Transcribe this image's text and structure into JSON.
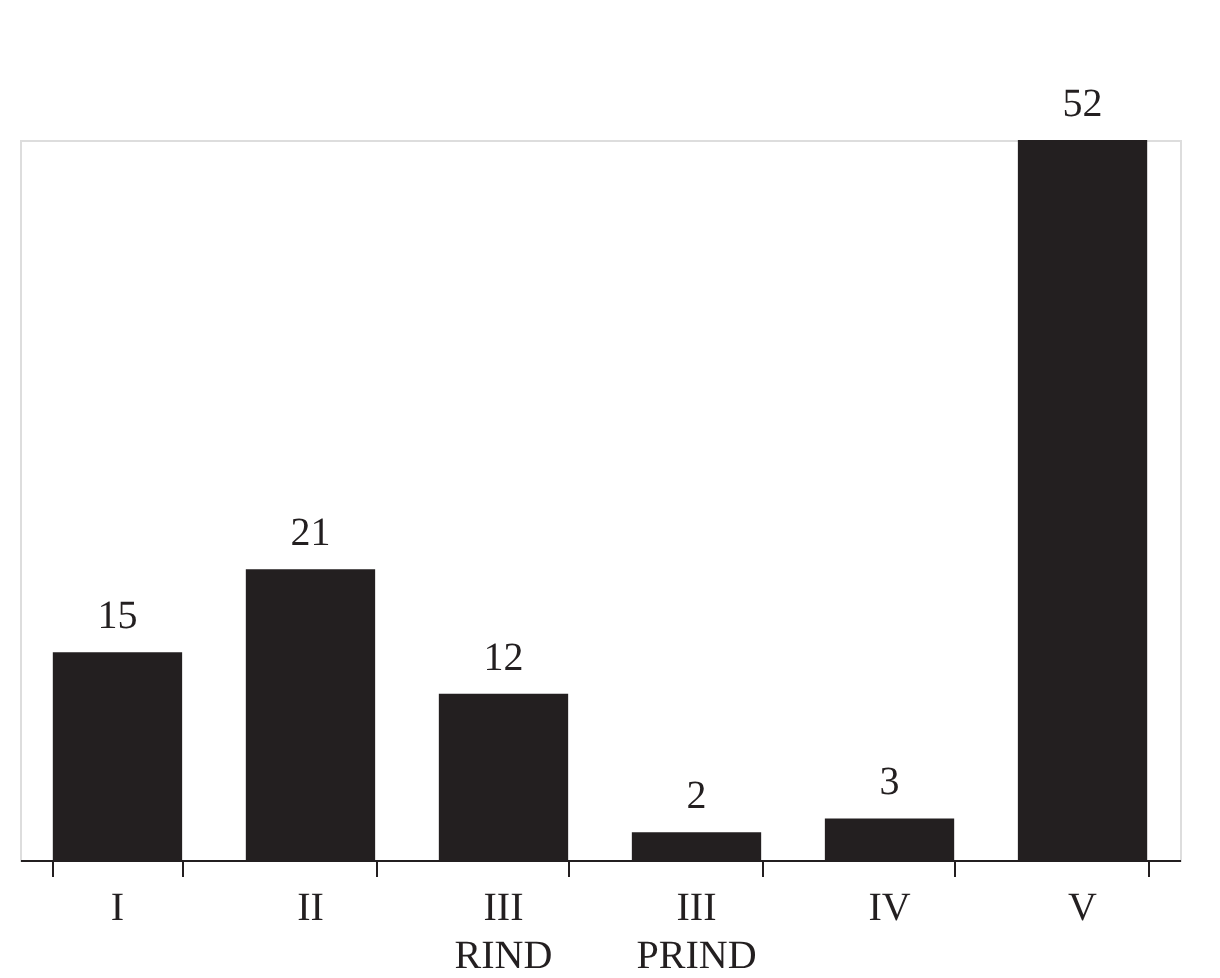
{
  "chart_data": {
    "type": "bar",
    "categories": [
      "I",
      "II",
      "III\nRIND",
      "III\nPRIND",
      "IV",
      "V"
    ],
    "values": [
      15,
      21,
      12,
      2,
      3,
      52
    ],
    "color": "#231f20",
    "data_labels": true,
    "grid": false,
    "tick_labels": "x"
  }
}
